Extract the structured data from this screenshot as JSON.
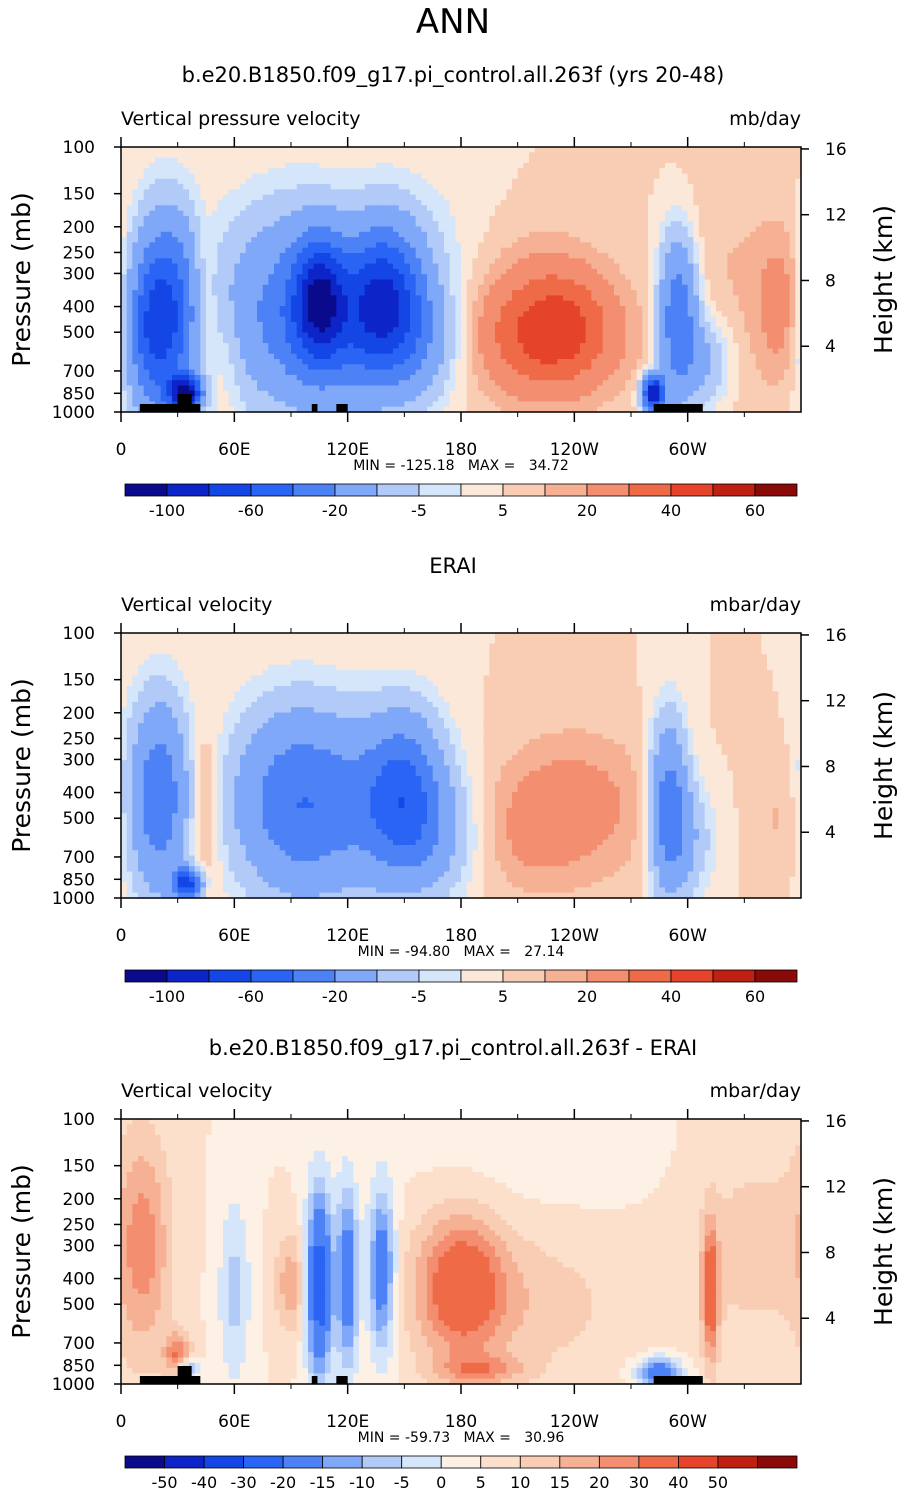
{
  "page_title": "ANN",
  "colors": {
    "scale_ab": [
      "#0a0a8c",
      "#0c24c8",
      "#1446e6",
      "#2a64f4",
      "#4c82f6",
      "#80a8f8",
      "#b2caf8",
      "#d6e6fa",
      "#fce8d8",
      "#f9cdb4",
      "#f6b194",
      "#f38f70",
      "#ef6b48",
      "#e6442a",
      "#c02014",
      "#8a0a0a"
    ],
    "scale_diff": [
      "#0a0a8c",
      "#0c24c8",
      "#1446e6",
      "#2a64f4",
      "#4c82f6",
      "#80a8f8",
      "#b2caf8",
      "#d6e6fa",
      "#fdf0e4",
      "#fce0cc",
      "#f9cdb4",
      "#f6b194",
      "#f38f70",
      "#ef6b48",
      "#e6442a",
      "#c02014",
      "#8a0a0a"
    ],
    "land": "#000000"
  },
  "chart_data": [
    {
      "type": "heatmap",
      "title": "b.e20.B1850.f09_g17.pi_control.all.263f (yrs 20-48)",
      "left_label": "Vertical pressure velocity",
      "right_label": "mb/day",
      "ylabel": "Pressure (mb)",
      "y2label": "Height (km)",
      "x_ticks": [
        "0",
        "60E",
        "120E",
        "180",
        "120W",
        "60W"
      ],
      "x_tick_values": [
        0,
        60,
        120,
        180,
        240,
        300
      ],
      "xlim": [
        0,
        360
      ],
      "y_ticks": [
        "100",
        "150",
        "200",
        "250",
        "300",
        "400",
        "500",
        "700",
        "850",
        "1000"
      ],
      "y_tick_values": [
        100,
        150,
        200,
        250,
        300,
        400,
        500,
        700,
        850,
        1000
      ],
      "ylim": [
        1000,
        100
      ],
      "y2_ticks": [
        "16",
        "12",
        "8",
        "4"
      ],
      "y2_tick_values": [
        16,
        12,
        8,
        4
      ],
      "stats": "MIN = -125.18   MAX =   34.72",
      "min": -125.18,
      "max": 34.72,
      "colorbar_labels": [
        "-100",
        "-60",
        "-20",
        "-5",
        "5",
        "20",
        "40",
        "60"
      ],
      "levels": [
        -120,
        -100,
        -80,
        -60,
        -40,
        -20,
        -10,
        -5,
        0,
        5,
        10,
        20,
        30,
        40,
        50,
        60
      ],
      "features": [
        {
          "lon": 25,
          "p": 420,
          "lw": 12,
          "pw": 330,
          "v": -70
        },
        {
          "lon": 34,
          "p": 850,
          "lw": 6,
          "pw": 90,
          "v": -120
        },
        {
          "lon": 15,
          "p": 500,
          "lw": 9,
          "pw": 300,
          "v": -40
        },
        {
          "lon": 44,
          "p": 400,
          "lw": 5,
          "pw": 250,
          "v": 18
        },
        {
          "lon": 55,
          "p": 600,
          "lw": 6,
          "pw": 250,
          "v": 8
        },
        {
          "lon": 90,
          "p": 400,
          "lw": 26,
          "pw": 320,
          "v": -42
        },
        {
          "lon": 105,
          "p": 370,
          "lw": 9,
          "pw": 160,
          "v": -78
        },
        {
          "lon": 140,
          "p": 370,
          "lw": 14,
          "pw": 200,
          "v": -78
        },
        {
          "lon": 125,
          "p": 500,
          "lw": 28,
          "pw": 280,
          "v": -35
        },
        {
          "lon": 160,
          "p": 560,
          "lw": 12,
          "pw": 200,
          "v": -14
        },
        {
          "lon": 170,
          "p": 300,
          "lw": 30,
          "pw": 300,
          "v": -8
        },
        {
          "lon": 225,
          "p": 520,
          "lw": 28,
          "pw": 230,
          "v": 24
        },
        {
          "lon": 235,
          "p": 450,
          "lw": 18,
          "pw": 200,
          "v": 12
        },
        {
          "lon": 205,
          "p": 380,
          "lw": 28,
          "pw": 300,
          "v": 9
        },
        {
          "lon": 295,
          "p": 450,
          "lw": 7,
          "pw": 280,
          "v": -60
        },
        {
          "lon": 282,
          "p": 850,
          "lw": 4,
          "pw": 90,
          "v": -120
        },
        {
          "lon": 310,
          "p": 650,
          "lw": 9,
          "pw": 200,
          "v": -22
        },
        {
          "lon": 350,
          "p": 400,
          "lw": 10,
          "pw": 230,
          "v": 14
        },
        {
          "lon": 320,
          "p": 300,
          "lw": 20,
          "pw": 400,
          "v": 5
        }
      ],
      "land_segments": [
        [
          10,
          42
        ],
        [
          101,
          104
        ],
        [
          114,
          120
        ],
        [
          282,
          308
        ]
      ]
    },
    {
      "type": "heatmap",
      "title": "ERAI",
      "left_label": "Vertical velocity",
      "right_label": "mbar/day",
      "ylabel": "Pressure (mb)",
      "y2label": "Height (km)",
      "x_ticks": [
        "0",
        "60E",
        "120E",
        "180",
        "120W",
        "60W"
      ],
      "x_tick_values": [
        0,
        60,
        120,
        180,
        240,
        300
      ],
      "xlim": [
        0,
        360
      ],
      "y_ticks": [
        "100",
        "150",
        "200",
        "250",
        "300",
        "400",
        "500",
        "700",
        "850",
        "1000"
      ],
      "y_tick_values": [
        100,
        150,
        200,
        250,
        300,
        400,
        500,
        700,
        850,
        1000
      ],
      "ylim": [
        1000,
        100
      ],
      "y2_ticks": [
        "16",
        "12",
        "8",
        "4"
      ],
      "y2_tick_values": [
        16,
        12,
        8,
        4
      ],
      "stats": "MIN = -94.80   MAX =   27.14",
      "min": -94.8,
      "max": 27.14,
      "colorbar_labels": [
        "-100",
        "-60",
        "-20",
        "-5",
        "5",
        "20",
        "40",
        "60"
      ],
      "levels": [
        -120,
        -100,
        -80,
        -60,
        -40,
        -20,
        -10,
        -5,
        0,
        5,
        10,
        20,
        30,
        40,
        50,
        60
      ],
      "features": [
        {
          "lon": 20,
          "p": 420,
          "lw": 11,
          "pw": 330,
          "v": -55
        },
        {
          "lon": 35,
          "p": 880,
          "lw": 5,
          "pw": 80,
          "v": -90
        },
        {
          "lon": 44,
          "p": 450,
          "lw": 6,
          "pw": 280,
          "v": 14
        },
        {
          "lon": 90,
          "p": 430,
          "lw": 22,
          "pw": 320,
          "v": -40
        },
        {
          "lon": 120,
          "p": 450,
          "lw": 30,
          "pw": 320,
          "v": -30
        },
        {
          "lon": 150,
          "p": 420,
          "lw": 14,
          "pw": 250,
          "v": -58
        },
        {
          "lon": 170,
          "p": 600,
          "lw": 14,
          "pw": 250,
          "v": -14
        },
        {
          "lon": 240,
          "p": 450,
          "lw": 30,
          "pw": 260,
          "v": 14
        },
        {
          "lon": 215,
          "p": 600,
          "lw": 18,
          "pw": 250,
          "v": 6
        },
        {
          "lon": 290,
          "p": 450,
          "lw": 7,
          "pw": 300,
          "v": -50
        },
        {
          "lon": 300,
          "p": 600,
          "lw": 10,
          "pw": 250,
          "v": -18
        },
        {
          "lon": 350,
          "p": 500,
          "lw": 10,
          "pw": 250,
          "v": 6
        }
      ],
      "land_segments": []
    },
    {
      "type": "heatmap",
      "title": "b.e20.B1850.f09_g17.pi_control.all.263f - ERAI",
      "left_label": "Vertical velocity",
      "right_label": "mbar/day",
      "ylabel": "Pressure (mb)",
      "y2label": "Height (km)",
      "x_ticks": [
        "0",
        "60E",
        "120E",
        "180",
        "120W",
        "60W"
      ],
      "x_tick_values": [
        0,
        60,
        120,
        180,
        240,
        300
      ],
      "xlim": [
        0,
        360
      ],
      "y_ticks": [
        "100",
        "150",
        "200",
        "250",
        "300",
        "400",
        "500",
        "700",
        "850",
        "1000"
      ],
      "y_tick_values": [
        100,
        150,
        200,
        250,
        300,
        400,
        500,
        700,
        850,
        1000
      ],
      "ylim": [
        1000,
        100
      ],
      "y2_ticks": [
        "16",
        "12",
        "8",
        "4"
      ],
      "y2_tick_values": [
        16,
        12,
        8,
        4
      ],
      "stats": "MIN = -59.73   MAX =   30.96",
      "min": -59.73,
      "max": 30.96,
      "colorbar_labels": [
        "-50",
        "-40",
        "-30",
        "-20",
        "-15",
        "-10",
        "-5",
        "0",
        "5",
        "10",
        "15",
        "20",
        "30",
        "40",
        "50"
      ],
      "levels": [
        -60,
        -50,
        -40,
        -30,
        -20,
        -15,
        -10,
        -5,
        0,
        5,
        10,
        15,
        20,
        30,
        40,
        50
      ],
      "features": [
        {
          "lon": 12,
          "p": 300,
          "lw": 10,
          "pw": 300,
          "v": 16
        },
        {
          "lon": 30,
          "p": 780,
          "lw": 5,
          "pw": 120,
          "v": 20
        },
        {
          "lon": 35,
          "p": 880,
          "lw": 4,
          "pw": 60,
          "v": -22
        },
        {
          "lon": 60,
          "p": 450,
          "lw": 6,
          "pw": 350,
          "v": -12
        },
        {
          "lon": 90,
          "p": 420,
          "lw": 6,
          "pw": 150,
          "v": 14
        },
        {
          "lon": 105,
          "p": 420,
          "lw": 5,
          "pw": 330,
          "v": -38
        },
        {
          "lon": 120,
          "p": 400,
          "lw": 4,
          "pw": 300,
          "v": -28
        },
        {
          "lon": 138,
          "p": 380,
          "lw": 5,
          "pw": 250,
          "v": -28
        },
        {
          "lon": 180,
          "p": 420,
          "lw": 16,
          "pw": 230,
          "v": 24
        },
        {
          "lon": 210,
          "p": 500,
          "lw": 40,
          "pw": 300,
          "v": 8
        },
        {
          "lon": 190,
          "p": 880,
          "lw": 16,
          "pw": 80,
          "v": 14
        },
        {
          "lon": 285,
          "p": 900,
          "lw": 8,
          "pw": 80,
          "v": -30
        },
        {
          "lon": 312,
          "p": 450,
          "lw": 3,
          "pw": 230,
          "v": 26
        },
        {
          "lon": 335,
          "p": 300,
          "lw": 25,
          "pw": 300,
          "v": 7
        },
        {
          "lon": 220,
          "p": 130,
          "lw": 45,
          "pw": 60,
          "v": -3
        }
      ],
      "land_segments": [
        [
          10,
          42
        ],
        [
          101,
          104
        ],
        [
          114,
          120
        ],
        [
          282,
          308
        ]
      ]
    }
  ]
}
